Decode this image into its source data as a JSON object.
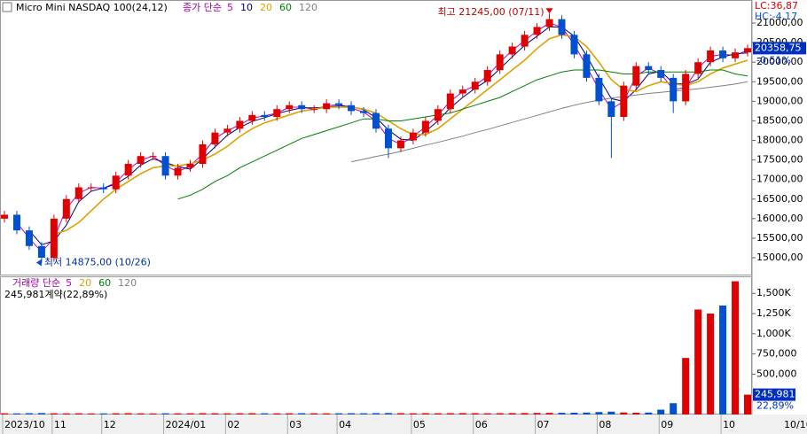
{
  "chart_data": [
    {
      "type": "candlestick",
      "title": "Micro Mini NASDAQ 100(24,12)",
      "legend_prefix": "종가 단순",
      "categories": [
        "2023/10",
        null,
        null,
        null,
        "11",
        null,
        null,
        null,
        "12",
        null,
        null,
        null,
        null,
        "2024/01",
        null,
        null,
        null,
        null,
        "02",
        null,
        null,
        null,
        null,
        "03",
        null,
        null,
        null,
        "04",
        null,
        null,
        null,
        null,
        null,
        "05",
        null,
        null,
        null,
        null,
        "06",
        null,
        null,
        null,
        null,
        "07",
        null,
        null,
        null,
        null,
        "08",
        null,
        null,
        null,
        null,
        "09",
        null,
        null,
        null,
        null,
        "10",
        null,
        null
      ],
      "end_label": "10/10",
      "open": [
        16000,
        16100,
        15700,
        15300,
        15000,
        16000,
        16500,
        16800,
        16800,
        16750,
        17100,
        17400,
        17600,
        17600,
        17100,
        17300,
        17400,
        17900,
        18200,
        18300,
        18500,
        18650,
        18600,
        18800,
        18900,
        18800,
        18800,
        18950,
        18900,
        18750,
        18700,
        18300,
        17800,
        18000,
        18200,
        18500,
        18800,
        19200,
        19300,
        19500,
        19800,
        20200,
        20400,
        20700,
        20900,
        21100,
        20700,
        20200,
        19600,
        19000,
        18600,
        19400,
        19900,
        19800,
        19600,
        19000,
        19700,
        20000,
        20300,
        20100,
        20250
      ],
      "high": [
        16200,
        16200,
        15800,
        15400,
        16100,
        16600,
        16900,
        16900,
        16900,
        17200,
        17500,
        17700,
        17700,
        17700,
        17400,
        17500,
        18000,
        18300,
        18400,
        18600,
        18750,
        18750,
        18900,
        19000,
        19000,
        18900,
        19050,
        19050,
        19000,
        18850,
        18800,
        18400,
        18100,
        18300,
        18600,
        18900,
        19300,
        19400,
        19600,
        19900,
        20300,
        20500,
        20800,
        21000,
        21245,
        21200,
        20800,
        20300,
        19700,
        19100,
        19500,
        20000,
        20000,
        19900,
        19700,
        19800,
        20100,
        20400,
        20400,
        20350,
        20450
      ],
      "low": [
        15900,
        15600,
        15200,
        14875,
        14900,
        15900,
        16400,
        16700,
        16650,
        16650,
        17000,
        17300,
        17500,
        17000,
        17000,
        17200,
        17300,
        17800,
        18100,
        18200,
        18400,
        18500,
        18500,
        18700,
        18700,
        18700,
        18700,
        18800,
        18650,
        18600,
        18200,
        17550,
        17700,
        17900,
        18100,
        18400,
        18700,
        19100,
        19200,
        19400,
        19700,
        20100,
        20300,
        20600,
        20800,
        20600,
        20100,
        19500,
        18900,
        17550,
        18500,
        19300,
        19700,
        19500,
        18700,
        18900,
        19600,
        19900,
        20000,
        20000,
        20150
      ],
      "close": [
        16100,
        15700,
        15300,
        15000,
        16000,
        16500,
        16800,
        16800,
        16750,
        17100,
        17400,
        17600,
        17600,
        17100,
        17300,
        17400,
        17900,
        18200,
        18300,
        18500,
        18650,
        18600,
        18800,
        18900,
        18800,
        18800,
        18950,
        18900,
        18750,
        18700,
        18300,
        17800,
        18000,
        18200,
        18500,
        18800,
        19200,
        19300,
        19500,
        19800,
        20200,
        20400,
        20700,
        20900,
        21100,
        20700,
        20200,
        19600,
        19000,
        18600,
        19400,
        19900,
        19800,
        19600,
        19000,
        19700,
        20000,
        20300,
        20100,
        20250,
        20358.75
      ],
      "up_color": "#e00000",
      "down_color": "#0050d0",
      "series": [
        {
          "name": "5",
          "color": "#c000c0",
          "values": [
            null,
            15900,
            15500,
            15150,
            15500,
            16250,
            16650,
            16800,
            16775,
            16925,
            17250,
            17500,
            17600,
            17350,
            17200,
            17350,
            17650,
            18050,
            18250,
            18400,
            18575,
            18625,
            18700,
            18850,
            18850,
            18800,
            18875,
            18925,
            18825,
            18725,
            18500,
            18050,
            17900,
            18100,
            18350,
            18650,
            19000,
            19250,
            19400,
            19650,
            20000,
            20300,
            20550,
            20800,
            21000,
            20900,
            20450,
            19900,
            19300,
            18800,
            19000,
            19650,
            19850,
            19700,
            19300,
            19350,
            19850,
            20150,
            20200,
            20175,
            20305
          ]
        },
        {
          "name": "10",
          "color": "#000080",
          "values": [
            null,
            null,
            15700,
            15333,
            15433,
            15833,
            16433,
            16700,
            16783,
            16883,
            17083,
            17367,
            17533,
            17433,
            17333,
            17267,
            17533,
            17833,
            18133,
            18333,
            18483,
            18583,
            18683,
            18767,
            18833,
            18833,
            18850,
            18883,
            18867,
            18783,
            18583,
            18267,
            18033,
            18000,
            18233,
            18500,
            18833,
            19100,
            19333,
            19533,
            19833,
            20133,
            20433,
            20667,
            20900,
            20900,
            20667,
            20167,
            19600,
            19067,
            19000,
            19300,
            19700,
            19767,
            19467,
            19433,
            19567,
            20000,
            20133,
            20217,
            20237
          ]
        },
        {
          "name": "20",
          "color": "#e0a000",
          "values": [
            null,
            null,
            null,
            null,
            15600,
            15700,
            15900,
            16200,
            16500,
            16750,
            16950,
            17150,
            17300,
            17350,
            17350,
            17400,
            17500,
            17650,
            17850,
            18100,
            18300,
            18450,
            18550,
            18650,
            18750,
            18800,
            18850,
            18850,
            18850,
            18800,
            18700,
            18500,
            18300,
            18150,
            18150,
            18300,
            18550,
            18800,
            19050,
            19300,
            19550,
            19800,
            20050,
            20350,
            20600,
            20700,
            20650,
            20400,
            20000,
            19550,
            19300,
            19250,
            19400,
            19500,
            19450,
            19400,
            19500,
            19700,
            19850,
            19950,
            20050
          ]
        },
        {
          "name": "60",
          "color": "#008000",
          "values": [
            null,
            null,
            null,
            null,
            null,
            null,
            null,
            null,
            null,
            null,
            null,
            null,
            null,
            null,
            16500,
            16600,
            16750,
            16950,
            17100,
            17300,
            17450,
            17600,
            17750,
            17900,
            18050,
            18150,
            18250,
            18350,
            18450,
            18550,
            18550,
            18500,
            18500,
            18550,
            18600,
            18650,
            18700,
            18800,
            18900,
            19000,
            19100,
            19250,
            19400,
            19550,
            19650,
            19750,
            19800,
            19800,
            19800,
            19750,
            19700,
            19700,
            19750,
            19750,
            19750,
            19750,
            19750,
            19800,
            19800,
            19700,
            19650
          ]
        },
        {
          "name": "120",
          "color": "#808080",
          "values": [
            null,
            null,
            null,
            null,
            null,
            null,
            null,
            null,
            null,
            null,
            null,
            null,
            null,
            null,
            null,
            null,
            null,
            null,
            null,
            null,
            null,
            null,
            null,
            null,
            null,
            null,
            null,
            null,
            17450,
            17520,
            17590,
            17650,
            17720,
            17800,
            17880,
            17950,
            18030,
            18110,
            18200,
            18280,
            18370,
            18460,
            18550,
            18640,
            18730,
            18820,
            18900,
            18970,
            19030,
            19080,
            19120,
            19160,
            19200,
            19230,
            19260,
            19290,
            19320,
            19360,
            19400,
            19440,
            19500
          ]
        }
      ],
      "ylim": [
        14570,
        21590
      ],
      "yticks": [
        {
          "value": 15000,
          "label": "15000,00"
        },
        {
          "value": 15500,
          "label": "15500,00"
        },
        {
          "value": 16000,
          "label": "16000,00"
        },
        {
          "value": 16500,
          "label": "16500,00"
        },
        {
          "value": 17000,
          "label": "17000,00"
        },
        {
          "value": 17500,
          "label": "17500,00"
        },
        {
          "value": 18000,
          "label": "18000,00"
        },
        {
          "value": 18500,
          "label": "18500,00"
        },
        {
          "value": 19000,
          "label": "19000,00"
        },
        {
          "value": 19500,
          "label": "19500,00"
        },
        {
          "value": 20000,
          "label": "20000,00"
        },
        {
          "value": 20500,
          "label": "20500,00"
        },
        {
          "value": 21000,
          "label": "21000,00"
        }
      ],
      "annotations": {
        "high": {
          "text": "최고 21245,00 (07/11)",
          "index": 44,
          "value": 21245
        },
        "low": {
          "text": "최저 14875,00 (10/26)",
          "index": 3,
          "value": 14875
        }
      },
      "lc": "LC:36,87",
      "hc": "HC:-4,17",
      "last_label": "20358,75",
      "change": "-0,51%"
    },
    {
      "type": "bar",
      "legend_prefix": "거래량 단순",
      "legend": [
        {
          "name": "5",
          "color": "#c000c0"
        },
        {
          "name": "20",
          "color": "#e0a000"
        },
        {
          "name": "60",
          "color": "#008000"
        },
        {
          "name": "120",
          "color": "#808080"
        }
      ],
      "subtitle": "245,981계약(22,89%)",
      "values": [
        15000,
        14000,
        16000,
        18000,
        15000,
        14000,
        15000,
        13000,
        14000,
        15000,
        16000,
        14000,
        13000,
        15000,
        14000,
        15000,
        16000,
        15000,
        14000,
        15000,
        16000,
        15000,
        14000,
        15000,
        16000,
        15000,
        14000,
        15000,
        16000,
        15000,
        17000,
        18000,
        16000,
        15000,
        16000,
        15000,
        16000,
        17000,
        16000,
        15000,
        16000,
        17000,
        18000,
        19000,
        20000,
        21000,
        22000,
        24000,
        30000,
        35000,
        25000,
        22000,
        24000,
        60000,
        140000,
        700000,
        1300000,
        1250000,
        1350000,
        1650000,
        245981
      ],
      "ylim": [
        0,
        1700000
      ],
      "yticks": [
        {
          "value": 500000,
          "label": "500,000"
        },
        {
          "value": 750000,
          "label": "750,000"
        },
        {
          "value": 1000000,
          "label": "1,000K"
        },
        {
          "value": 1250000,
          "label": "1,250K"
        },
        {
          "value": 1500000,
          "label": "1,500K"
        }
      ],
      "last_label": "245,981",
      "change": "22,89%"
    }
  ]
}
